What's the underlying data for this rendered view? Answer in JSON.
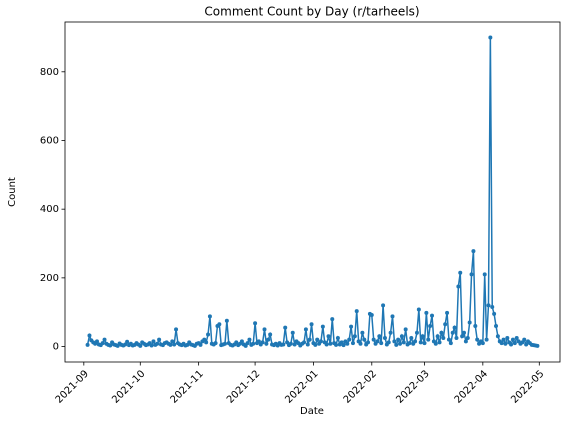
{
  "chart_data": {
    "type": "line",
    "title": "Comment Count by Day (r/tarheels)",
    "x_label": "Date",
    "y_label": "Count",
    "x": [
      "2021-09-03",
      "2021-09-04",
      "2021-09-05",
      "2021-09-06",
      "2021-09-07",
      "2021-09-08",
      "2021-09-09",
      "2021-09-10",
      "2021-09-11",
      "2021-09-12",
      "2021-09-13",
      "2021-09-14",
      "2021-09-15",
      "2021-09-16",
      "2021-09-17",
      "2021-09-18",
      "2021-09-19",
      "2021-09-20",
      "2021-09-21",
      "2021-09-22",
      "2021-09-23",
      "2021-09-24",
      "2021-09-25",
      "2021-09-26",
      "2021-09-27",
      "2021-09-28",
      "2021-09-29",
      "2021-09-30",
      "2021-10-01",
      "2021-10-02",
      "2021-10-03",
      "2021-10-04",
      "2021-10-05",
      "2021-10-06",
      "2021-10-07",
      "2021-10-08",
      "2021-10-09",
      "2021-10-10",
      "2021-10-11",
      "2021-10-12",
      "2021-10-13",
      "2021-10-14",
      "2021-10-15",
      "2021-10-16",
      "2021-10-17",
      "2021-10-18",
      "2021-10-19",
      "2021-10-20",
      "2021-10-21",
      "2021-10-22",
      "2021-10-23",
      "2021-10-24",
      "2021-10-25",
      "2021-10-26",
      "2021-10-27",
      "2021-10-28",
      "2021-10-29",
      "2021-10-30",
      "2021-10-31",
      "2021-11-01",
      "2021-11-02",
      "2021-11-03",
      "2021-11-04",
      "2021-11-05",
      "2021-11-06",
      "2021-11-07",
      "2021-11-08",
      "2021-11-09",
      "2021-11-10",
      "2021-11-11",
      "2021-11-12",
      "2021-11-13",
      "2021-11-14",
      "2021-11-15",
      "2021-11-16",
      "2021-11-17",
      "2021-11-18",
      "2021-11-19",
      "2021-11-20",
      "2021-11-21",
      "2021-11-22",
      "2021-11-23",
      "2021-11-24",
      "2021-11-25",
      "2021-11-26",
      "2021-11-27",
      "2021-11-28",
      "2021-11-29",
      "2021-11-30",
      "2021-12-01",
      "2021-12-02",
      "2021-12-03",
      "2021-12-04",
      "2021-12-05",
      "2021-12-06",
      "2021-12-07",
      "2021-12-08",
      "2021-12-09",
      "2021-12-10",
      "2021-12-11",
      "2021-12-12",
      "2021-12-13",
      "2021-12-14",
      "2021-12-15",
      "2021-12-16",
      "2021-12-17",
      "2021-12-18",
      "2021-12-19",
      "2021-12-20",
      "2021-12-21",
      "2021-12-22",
      "2021-12-23",
      "2021-12-24",
      "2021-12-25",
      "2021-12-26",
      "2021-12-27",
      "2021-12-28",
      "2021-12-29",
      "2021-12-30",
      "2021-12-31",
      "2022-01-01",
      "2022-01-02",
      "2022-01-03",
      "2022-01-04",
      "2022-01-05",
      "2022-01-06",
      "2022-01-07",
      "2022-01-08",
      "2022-01-09",
      "2022-01-10",
      "2022-01-11",
      "2022-01-12",
      "2022-01-13",
      "2022-01-14",
      "2022-01-15",
      "2022-01-16",
      "2022-01-17",
      "2022-01-18",
      "2022-01-19",
      "2022-01-20",
      "2022-01-21",
      "2022-01-22",
      "2022-01-23",
      "2022-01-24",
      "2022-01-25",
      "2022-01-26",
      "2022-01-27",
      "2022-01-28",
      "2022-01-29",
      "2022-01-30",
      "2022-01-31",
      "2022-02-01",
      "2022-02-02",
      "2022-02-03",
      "2022-02-04",
      "2022-02-05",
      "2022-02-06",
      "2022-02-07",
      "2022-02-08",
      "2022-02-09",
      "2022-02-10",
      "2022-02-11",
      "2022-02-12",
      "2022-02-13",
      "2022-02-14",
      "2022-02-15",
      "2022-02-16",
      "2022-02-17",
      "2022-02-18",
      "2022-02-19",
      "2022-02-20",
      "2022-02-21",
      "2022-02-22",
      "2022-02-23",
      "2022-02-24",
      "2022-02-25",
      "2022-02-26",
      "2022-02-27",
      "2022-02-28",
      "2022-03-01",
      "2022-03-02",
      "2022-03-03",
      "2022-03-04",
      "2022-03-05",
      "2022-03-06",
      "2022-03-07",
      "2022-03-08",
      "2022-03-09",
      "2022-03-10",
      "2022-03-11",
      "2022-03-12",
      "2022-03-13",
      "2022-03-14",
      "2022-03-15",
      "2022-03-16",
      "2022-03-17",
      "2022-03-18",
      "2022-03-19",
      "2022-03-20",
      "2022-03-21",
      "2022-03-22",
      "2022-03-23",
      "2022-03-24",
      "2022-03-25",
      "2022-03-26",
      "2022-03-27",
      "2022-03-28",
      "2022-03-29",
      "2022-03-30",
      "2022-03-31",
      "2022-04-01",
      "2022-04-02",
      "2022-04-03",
      "2022-04-04",
      "2022-04-05",
      "2022-04-06",
      "2022-04-07",
      "2022-04-08",
      "2022-04-09",
      "2022-04-10",
      "2022-04-11",
      "2022-04-12",
      "2022-04-13",
      "2022-04-14",
      "2022-04-15",
      "2022-04-16",
      "2022-04-17",
      "2022-04-18",
      "2022-04-19",
      "2022-04-20",
      "2022-04-21",
      "2022-04-22",
      "2022-04-23",
      "2022-04-24",
      "2022-04-25",
      "2022-04-26",
      "2022-04-27",
      "2022-04-28",
      "2022-04-29",
      "2022-04-30"
    ],
    "series": [
      {
        "color": "#1f77b4",
        "values": [
          5,
          32,
          18,
          12,
          8,
          15,
          6,
          4,
          10,
          20,
          8,
          5,
          3,
          12,
          6,
          4,
          2,
          9,
          5,
          3,
          6,
          14,
          4,
          8,
          3,
          5,
          10,
          6,
          2,
          12,
          8,
          4,
          6,
          10,
          3,
          15,
          5,
          8,
          20,
          6,
          4,
          10,
          12,
          8,
          5,
          15,
          6,
          50,
          10,
          6,
          4,
          8,
          3,
          5,
          12,
          6,
          4,
          2,
          8,
          10,
          5,
          15,
          20,
          12,
          35,
          88,
          8,
          6,
          10,
          60,
          65,
          4,
          6,
          8,
          75,
          10,
          5,
          3,
          6,
          12,
          4,
          8,
          15,
          6,
          2,
          10,
          20,
          5,
          8,
          68,
          10,
          15,
          6,
          12,
          50,
          8,
          20,
          35,
          6,
          4,
          8,
          3,
          10,
          5,
          6,
          55,
          12,
          4,
          8,
          40,
          6,
          15,
          10,
          3,
          8,
          12,
          50,
          6,
          20,
          65,
          10,
          5,
          20,
          8,
          15,
          58,
          12,
          6,
          30,
          8,
          80,
          10,
          5,
          25,
          6,
          12,
          4,
          15,
          8,
          20,
          58,
          10,
          30,
          103,
          15,
          8,
          40,
          20,
          6,
          12,
          95,
          92,
          20,
          8,
          15,
          30,
          10,
          120,
          25,
          6,
          12,
          40,
          88,
          15,
          5,
          20,
          8,
          30,
          12,
          50,
          6,
          10,
          25,
          8,
          15,
          40,
          108,
          12,
          30,
          10,
          98,
          20,
          60,
          90,
          15,
          8,
          30,
          12,
          40,
          25,
          65,
          98,
          20,
          10,
          40,
          55,
          25,
          175,
          215,
          30,
          40,
          15,
          25,
          70,
          210,
          278,
          60,
          20,
          8,
          15,
          10,
          210,
          20,
          120,
          900,
          115,
          95,
          60,
          30,
          15,
          10,
          20,
          8,
          25,
          12,
          6,
          20,
          10,
          25,
          15,
          8,
          12,
          20,
          6,
          15,
          10,
          5,
          4,
          3,
          2
        ]
      }
    ],
    "xlim": [
      "2021-08-22",
      "2022-05-12"
    ],
    "xticks": [
      {
        "value": "2021-09-01",
        "label": "2021-09"
      },
      {
        "value": "2021-10-01",
        "label": "2021-10"
      },
      {
        "value": "2021-11-01",
        "label": "2021-11"
      },
      {
        "value": "2021-12-01",
        "label": "2021-12"
      },
      {
        "value": "2022-01-01",
        "label": "2022-01"
      },
      {
        "value": "2022-02-01",
        "label": "2022-02"
      },
      {
        "value": "2022-03-01",
        "label": "2022-03"
      },
      {
        "value": "2022-04-01",
        "label": "2022-04"
      },
      {
        "value": "2022-05-01",
        "label": "2022-05"
      }
    ],
    "ylim": [
      -45,
      945
    ],
    "yticks": [
      0,
      200,
      400,
      600,
      800
    ]
  }
}
